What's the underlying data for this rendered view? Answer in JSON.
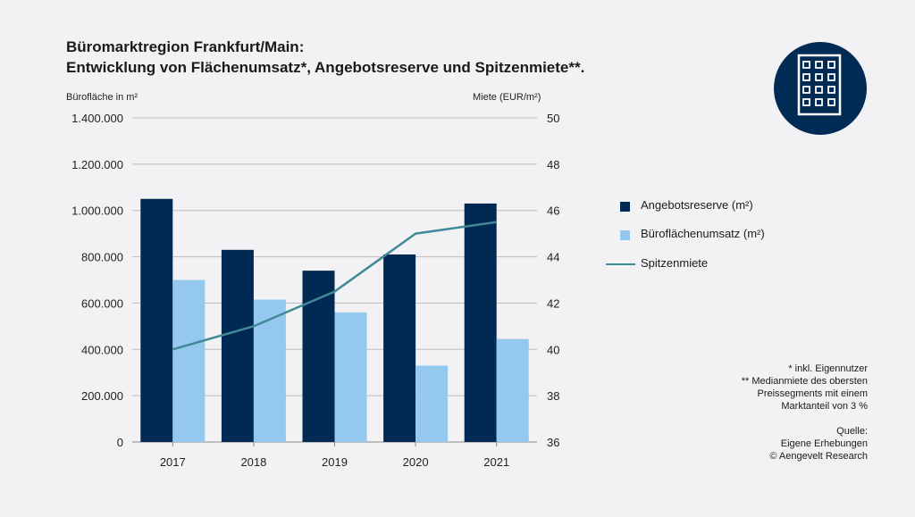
{
  "title": {
    "line1": "Büromarktregion Frankfurt/Main:",
    "line2": "Entwicklung von Flächenumsatz*, Angebotsreserve und Spitzenmiete**."
  },
  "axes": {
    "left_label": "Bürofläche in m²",
    "right_label": "Miete (EUR/m²)"
  },
  "legend": [
    {
      "label": "Angebotsreserve (m²)",
      "color": "#002a54",
      "kind": "bar"
    },
    {
      "label": "Büroflächenumsatz (m²)",
      "color": "#95c8ee",
      "kind": "bar"
    },
    {
      "label": "Spitzenmiete",
      "color": "#3f8a96",
      "kind": "line"
    }
  ],
  "notes": {
    "footnote1": "* inkl. Eigennutzer",
    "footnote2_lines": [
      "** Medianmiete des obersten",
      "Preissegments mit einem",
      "Marktanteil von 3 %"
    ],
    "source_lines": [
      "Quelle:",
      "Eigene Erhebungen",
      "© Aengevelt Research"
    ]
  },
  "icon": "office-building-icon",
  "chart_data": {
    "type": "bar",
    "categories": [
      "2017",
      "2018",
      "2019",
      "2020",
      "2021"
    ],
    "series": [
      {
        "name": "Angebotsreserve (m²)",
        "type": "bar",
        "axis": "left",
        "color": "#002a54",
        "values": [
          1050000,
          830000,
          740000,
          810000,
          1030000
        ]
      },
      {
        "name": "Büroflächenumsatz (m²)",
        "type": "bar",
        "axis": "left",
        "color": "#95c8ee",
        "values": [
          700000,
          615000,
          560000,
          330000,
          445000
        ]
      },
      {
        "name": "Spitzenmiete",
        "type": "line",
        "axis": "right",
        "color": "#3f8a96",
        "values": [
          40.0,
          41.0,
          42.5,
          45.0,
          45.5
        ]
      }
    ],
    "y_left": {
      "min": 0,
      "max": 1400000,
      "ticks": [
        "0",
        "200.000",
        "400.000",
        "600.000",
        "800.000",
        "1.000.000",
        "1.200.000",
        "1.400.000"
      ]
    },
    "y_right": {
      "min": 36,
      "max": 50,
      "ticks": [
        "36",
        "38",
        "40",
        "42",
        "44",
        "46",
        "48",
        "50"
      ]
    },
    "grid": true,
    "legend_position": "right"
  }
}
